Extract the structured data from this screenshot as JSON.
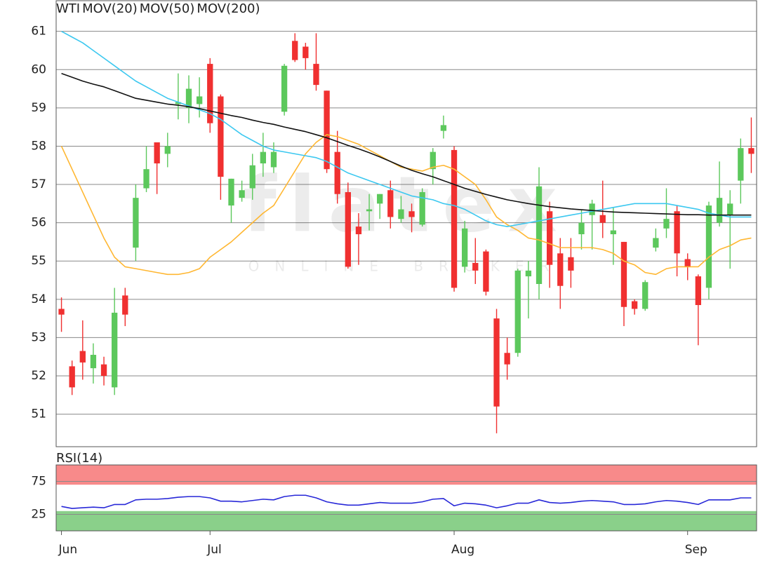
{
  "chart_data": [
    {
      "type": "candlestick",
      "name": "WTI",
      "color": "#f05a3c",
      "up_color": "#5cc85c",
      "down_color": "#f03030",
      "categories": [
        "Jun",
        null,
        null,
        null,
        null,
        null,
        null,
        null,
        null,
        null,
        null,
        null,
        null,
        null,
        "Jul",
        null,
        null,
        null,
        null,
        null,
        null,
        null,
        null,
        null,
        null,
        null,
        null,
        null,
        null,
        null,
        null,
        null,
        null,
        null,
        null,
        null,
        null,
        "Aug",
        null,
        null,
        null,
        null,
        null,
        null,
        null,
        null,
        null,
        null,
        null,
        null,
        null,
        null,
        null,
        null,
        null,
        null,
        null,
        null,
        null,
        "Sep",
        null,
        null,
        null,
        null,
        null,
        null
      ],
      "open": [
        53.75,
        52.25,
        52.65,
        52.2,
        52.3,
        51.7,
        54.1,
        55.35,
        56.9,
        58.1,
        57.8,
        59.1,
        59.0,
        59.1,
        60.15,
        59.3,
        56.45,
        56.65,
        56.9,
        57.55,
        57.45,
        58.9,
        60.75,
        60.6,
        60.15,
        59.45,
        57.85,
        56.8,
        55.9,
        56.3,
        56.5,
        56.85,
        56.1,
        56.3,
        55.95,
        57.4,
        58.4,
        57.9,
        54.85,
        54.95,
        55.25,
        53.5,
        52.6,
        52.6,
        54.6,
        54.4,
        56.3,
        55.2,
        55.1,
        55.7,
        56.2,
        56.2,
        55.7,
        55.5,
        53.95,
        53.75,
        55.35,
        55.85,
        56.3,
        55.05,
        54.6,
        54.3,
        56.0,
        56.2,
        57.1,
        57.95
      ],
      "high": [
        54.05,
        52.4,
        53.45,
        52.85,
        52.5,
        54.3,
        54.3,
        57.0,
        58.0,
        58.1,
        58.35,
        59.9,
        59.85,
        59.8,
        60.3,
        59.35,
        57.15,
        57.1,
        57.8,
        58.35,
        58.1,
        60.15,
        60.95,
        60.7,
        60.95,
        59.45,
        58.4,
        57.05,
        56.25,
        56.75,
        56.75,
        57.1,
        56.7,
        56.5,
        56.9,
        57.95,
        58.8,
        58.0,
        56.05,
        55.6,
        55.3,
        53.75,
        53.0,
        54.8,
        55.0,
        57.45,
        56.55,
        55.6,
        55.6,
        56.35,
        56.6,
        57.1,
        56.4,
        55.5,
        54.0,
        54.5,
        55.85,
        56.9,
        56.45,
        55.2,
        54.65,
        56.55,
        57.6,
        56.85,
        58.2,
        58.75
      ],
      "low": [
        53.15,
        51.5,
        51.9,
        51.8,
        51.75,
        51.5,
        53.3,
        55.0,
        56.8,
        56.75,
        57.45,
        58.7,
        58.6,
        58.75,
        58.35,
        56.6,
        56.0,
        56.55,
        56.6,
        57.2,
        57.3,
        58.8,
        60.2,
        60.0,
        59.45,
        57.3,
        56.5,
        54.8,
        54.9,
        55.8,
        56.1,
        55.85,
        56.0,
        55.75,
        55.9,
        57.0,
        58.2,
        54.2,
        54.7,
        54.4,
        54.1,
        50.5,
        51.9,
        52.5,
        53.5,
        54.0,
        54.3,
        53.75,
        54.3,
        55.3,
        55.3,
        55.6,
        54.9,
        53.3,
        53.6,
        53.7,
        55.25,
        55.6,
        54.6,
        54.5,
        52.8,
        54.0,
        55.9,
        54.8,
        56.5,
        57.3
      ],
      "close": [
        53.6,
        51.7,
        52.35,
        52.55,
        52.0,
        53.65,
        53.6,
        56.65,
        57.4,
        57.55,
        58.0,
        59.15,
        59.5,
        59.3,
        58.6,
        57.2,
        57.15,
        56.85,
        57.5,
        57.85,
        57.85,
        60.1,
        60.25,
        60.3,
        59.6,
        57.4,
        56.75,
        54.85,
        55.7,
        56.35,
        56.75,
        56.15,
        56.35,
        56.15,
        56.8,
        57.85,
        58.55,
        54.3,
        55.85,
        54.75,
        54.2,
        51.2,
        52.3,
        54.75,
        54.75,
        56.95,
        54.9,
        54.35,
        54.75,
        56.0,
        56.5,
        56.0,
        55.8,
        53.8,
        53.75,
        54.45,
        55.6,
        56.1,
        55.2,
        54.85,
        53.85,
        56.45,
        56.65,
        56.5,
        57.95,
        57.8
      ],
      "series": [
        {
          "name": "MOV(20)",
          "color": "#ffb732",
          "values": [
            58.0,
            57.4,
            56.8,
            56.2,
            55.6,
            55.1,
            54.85,
            54.8,
            54.75,
            54.7,
            54.65,
            54.65,
            54.7,
            54.8,
            55.1,
            55.3,
            55.5,
            55.75,
            56.0,
            56.25,
            56.45,
            56.9,
            57.35,
            57.8,
            58.1,
            58.3,
            58.25,
            58.15,
            58.05,
            57.9,
            57.75,
            57.6,
            57.45,
            57.4,
            57.35,
            57.45,
            57.5,
            57.4,
            57.2,
            57.0,
            56.6,
            56.15,
            55.95,
            55.8,
            55.6,
            55.55,
            55.45,
            55.35,
            55.35,
            55.35,
            55.35,
            55.3,
            55.2,
            55.0,
            54.9,
            54.7,
            54.65,
            54.8,
            54.85,
            54.85,
            54.85,
            55.1,
            55.3,
            55.4,
            55.55,
            55.6
          ]
        },
        {
          "name": "MOV(50)",
          "color": "#3cc8f0",
          "values": [
            61.0,
            60.85,
            60.7,
            60.5,
            60.3,
            60.1,
            59.9,
            59.7,
            59.55,
            59.4,
            59.25,
            59.15,
            59.05,
            58.95,
            58.85,
            58.7,
            58.5,
            58.3,
            58.15,
            58.0,
            57.9,
            57.85,
            57.8,
            57.75,
            57.7,
            57.6,
            57.45,
            57.3,
            57.2,
            57.1,
            57.0,
            56.9,
            56.8,
            56.7,
            56.65,
            56.6,
            56.5,
            56.45,
            56.35,
            56.2,
            56.05,
            55.95,
            55.9,
            55.95,
            56.0,
            56.05,
            56.1,
            56.15,
            56.2,
            56.25,
            56.3,
            56.35,
            56.4,
            56.45,
            56.5,
            56.5,
            56.5,
            56.5,
            56.45,
            56.4,
            56.35,
            56.25,
            56.2,
            56.15,
            56.15,
            56.15
          ]
        },
        {
          "name": "MOV(200)",
          "color": "#111111",
          "values": [
            59.9,
            59.8,
            59.7,
            59.62,
            59.55,
            59.45,
            59.35,
            59.25,
            59.2,
            59.15,
            59.1,
            59.07,
            59.03,
            58.98,
            58.92,
            58.86,
            58.8,
            58.75,
            58.68,
            58.62,
            58.57,
            58.5,
            58.44,
            58.38,
            58.3,
            58.22,
            58.12,
            58.02,
            57.93,
            57.83,
            57.72,
            57.6,
            57.48,
            57.37,
            57.28,
            57.2,
            57.1,
            57.0,
            56.9,
            56.82,
            56.74,
            56.67,
            56.6,
            56.55,
            56.5,
            56.46,
            56.42,
            56.39,
            56.36,
            56.34,
            56.32,
            56.3,
            56.28,
            56.27,
            56.26,
            56.25,
            56.24,
            56.23,
            56.22,
            56.21,
            56.21,
            56.2,
            56.2,
            56.2,
            56.2,
            56.2
          ]
        }
      ],
      "ylim": [
        50.15,
        61.8
      ],
      "yticks": [
        51,
        52,
        53,
        54,
        55,
        56,
        57,
        58,
        59,
        60,
        61
      ],
      "grid": true,
      "watermark": {
        "title": "flatex",
        "subtitle": "ONLINE BROKER"
      }
    },
    {
      "type": "line",
      "series": [
        {
          "name": "RSI(14)",
          "color": "#2828d8",
          "values": [
            37,
            34,
            35,
            36,
            35,
            40,
            40,
            47,
            48,
            48,
            49,
            51,
            52,
            52,
            50,
            45,
            45,
            44,
            46,
            48,
            47,
            52,
            54,
            54,
            50,
            44,
            41,
            39,
            39,
            41,
            43,
            42,
            42,
            42,
            44,
            48,
            49,
            38,
            42,
            41,
            39,
            35,
            38,
            42,
            42,
            47,
            43,
            42,
            43,
            45,
            46,
            45,
            44,
            40,
            40,
            41,
            44,
            46,
            45,
            43,
            40,
            47,
            47,
            47,
            50,
            50
          ]
        }
      ],
      "ylim": [
        0,
        100
      ],
      "yticks": [
        25,
        75
      ],
      "grid": true,
      "zones": [
        {
          "from": 70,
          "to": 100,
          "color": "#f88a8a"
        },
        {
          "from": 0,
          "to": 30,
          "color": "#8ad08a"
        }
      ]
    }
  ]
}
